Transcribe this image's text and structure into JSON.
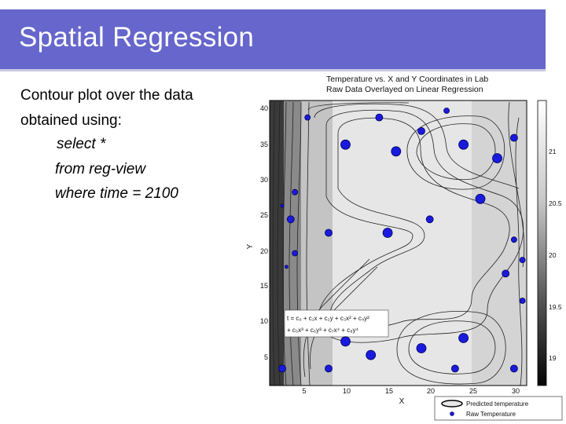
{
  "slide": {
    "title": "Spatial Regression",
    "lines": [
      "Contour plot over the data",
      "obtained using:"
    ],
    "query": [
      "select *",
      "from reg-view",
      "where time = 2100"
    ]
  },
  "chart_data": {
    "type": "contour",
    "title": [
      "Temperature vs. X and Y Coordinates in Lab",
      "Raw Data Overlayed on Linear Regression"
    ],
    "xlabel": "X",
    "ylabel": "Y",
    "xlim": [
      1,
      31.5
    ],
    "ylim": [
      0,
      42
    ],
    "x_ticks": [
      5,
      10,
      15,
      20,
      25,
      30
    ],
    "y_ticks": [
      5,
      10,
      15,
      20,
      25,
      30,
      35,
      40
    ],
    "colorbar": {
      "ticks": [
        21,
        20.5,
        20,
        19.5,
        19
      ]
    },
    "equation": [
      "t = c₀ + c₁x + c₂y + c₃x² + c₄y²",
      "+ c₅x³ + c₆y³ + c₇x⁴ + c₈y⁴"
    ],
    "legend": {
      "items": [
        "Predicted temperature",
        "Raw Temperature"
      ],
      "position": "bottom-right"
    },
    "colors": {
      "point": "#1a1adf",
      "point_edge": "#000055"
    },
    "raw_points": [
      {
        "x": 5.5,
        "y": 39.5,
        "r": "s"
      },
      {
        "x": 14,
        "y": 39.5,
        "r": "m"
      },
      {
        "x": 22,
        "y": 40.5,
        "r": "s"
      },
      {
        "x": 19,
        "y": 37.5,
        "r": "m"
      },
      {
        "x": 10,
        "y": 35.5,
        "r": "l"
      },
      {
        "x": 16,
        "y": 34.5,
        "r": "l"
      },
      {
        "x": 24,
        "y": 35.5,
        "r": "l"
      },
      {
        "x": 30,
        "y": 36.5,
        "r": "m"
      },
      {
        "x": 28,
        "y": 33.5,
        "r": "l"
      },
      {
        "x": 4,
        "y": 28.5,
        "r": "s"
      },
      {
        "x": 26,
        "y": 27.5,
        "r": "l"
      },
      {
        "x": 2.5,
        "y": 26.5,
        "r": "t"
      },
      {
        "x": 3.5,
        "y": 24.5,
        "r": "m"
      },
      {
        "x": 20,
        "y": 24.5,
        "r": "m"
      },
      {
        "x": 8,
        "y": 22.5,
        "r": "m"
      },
      {
        "x": 15,
        "y": 22.5,
        "r": "l"
      },
      {
        "x": 30,
        "y": 21.5,
        "r": "s"
      },
      {
        "x": 4,
        "y": 19.5,
        "r": "s"
      },
      {
        "x": 31,
        "y": 18.5,
        "r": "s"
      },
      {
        "x": 3,
        "y": 17.5,
        "r": "t"
      },
      {
        "x": 29,
        "y": 16.5,
        "r": "m"
      },
      {
        "x": 31,
        "y": 12.5,
        "r": "s"
      },
      {
        "x": 10,
        "y": 6.5,
        "r": "l"
      },
      {
        "x": 24,
        "y": 7.0,
        "r": "l"
      },
      {
        "x": 19,
        "y": 5.5,
        "r": "l"
      },
      {
        "x": 13,
        "y": 4.5,
        "r": "l"
      },
      {
        "x": 2.5,
        "y": 2.5,
        "r": "m"
      },
      {
        "x": 8,
        "y": 2.5,
        "r": "m"
      },
      {
        "x": 23,
        "y": 2.5,
        "r": "m"
      },
      {
        "x": 30,
        "y": 2.5,
        "r": "m"
      }
    ]
  }
}
